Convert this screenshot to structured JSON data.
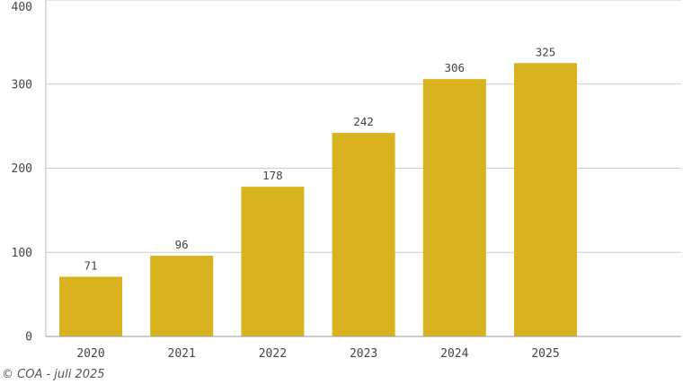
{
  "chart_data": {
    "type": "bar",
    "categories": [
      "2020",
      "2021",
      "2022",
      "2023",
      "2024",
      "2025"
    ],
    "values": [
      71,
      96,
      178,
      242,
      306,
      325
    ],
    "title": "",
    "xlabel": "",
    "ylabel": "",
    "ylim": [
      0,
      400
    ],
    "yticks": [
      0,
      100,
      200,
      300,
      400
    ],
    "grid": true,
    "bar_color": "#d9b31f",
    "grid_color": "#cccccc"
  },
  "footer": {
    "credit": "© COA - juli 2025"
  }
}
